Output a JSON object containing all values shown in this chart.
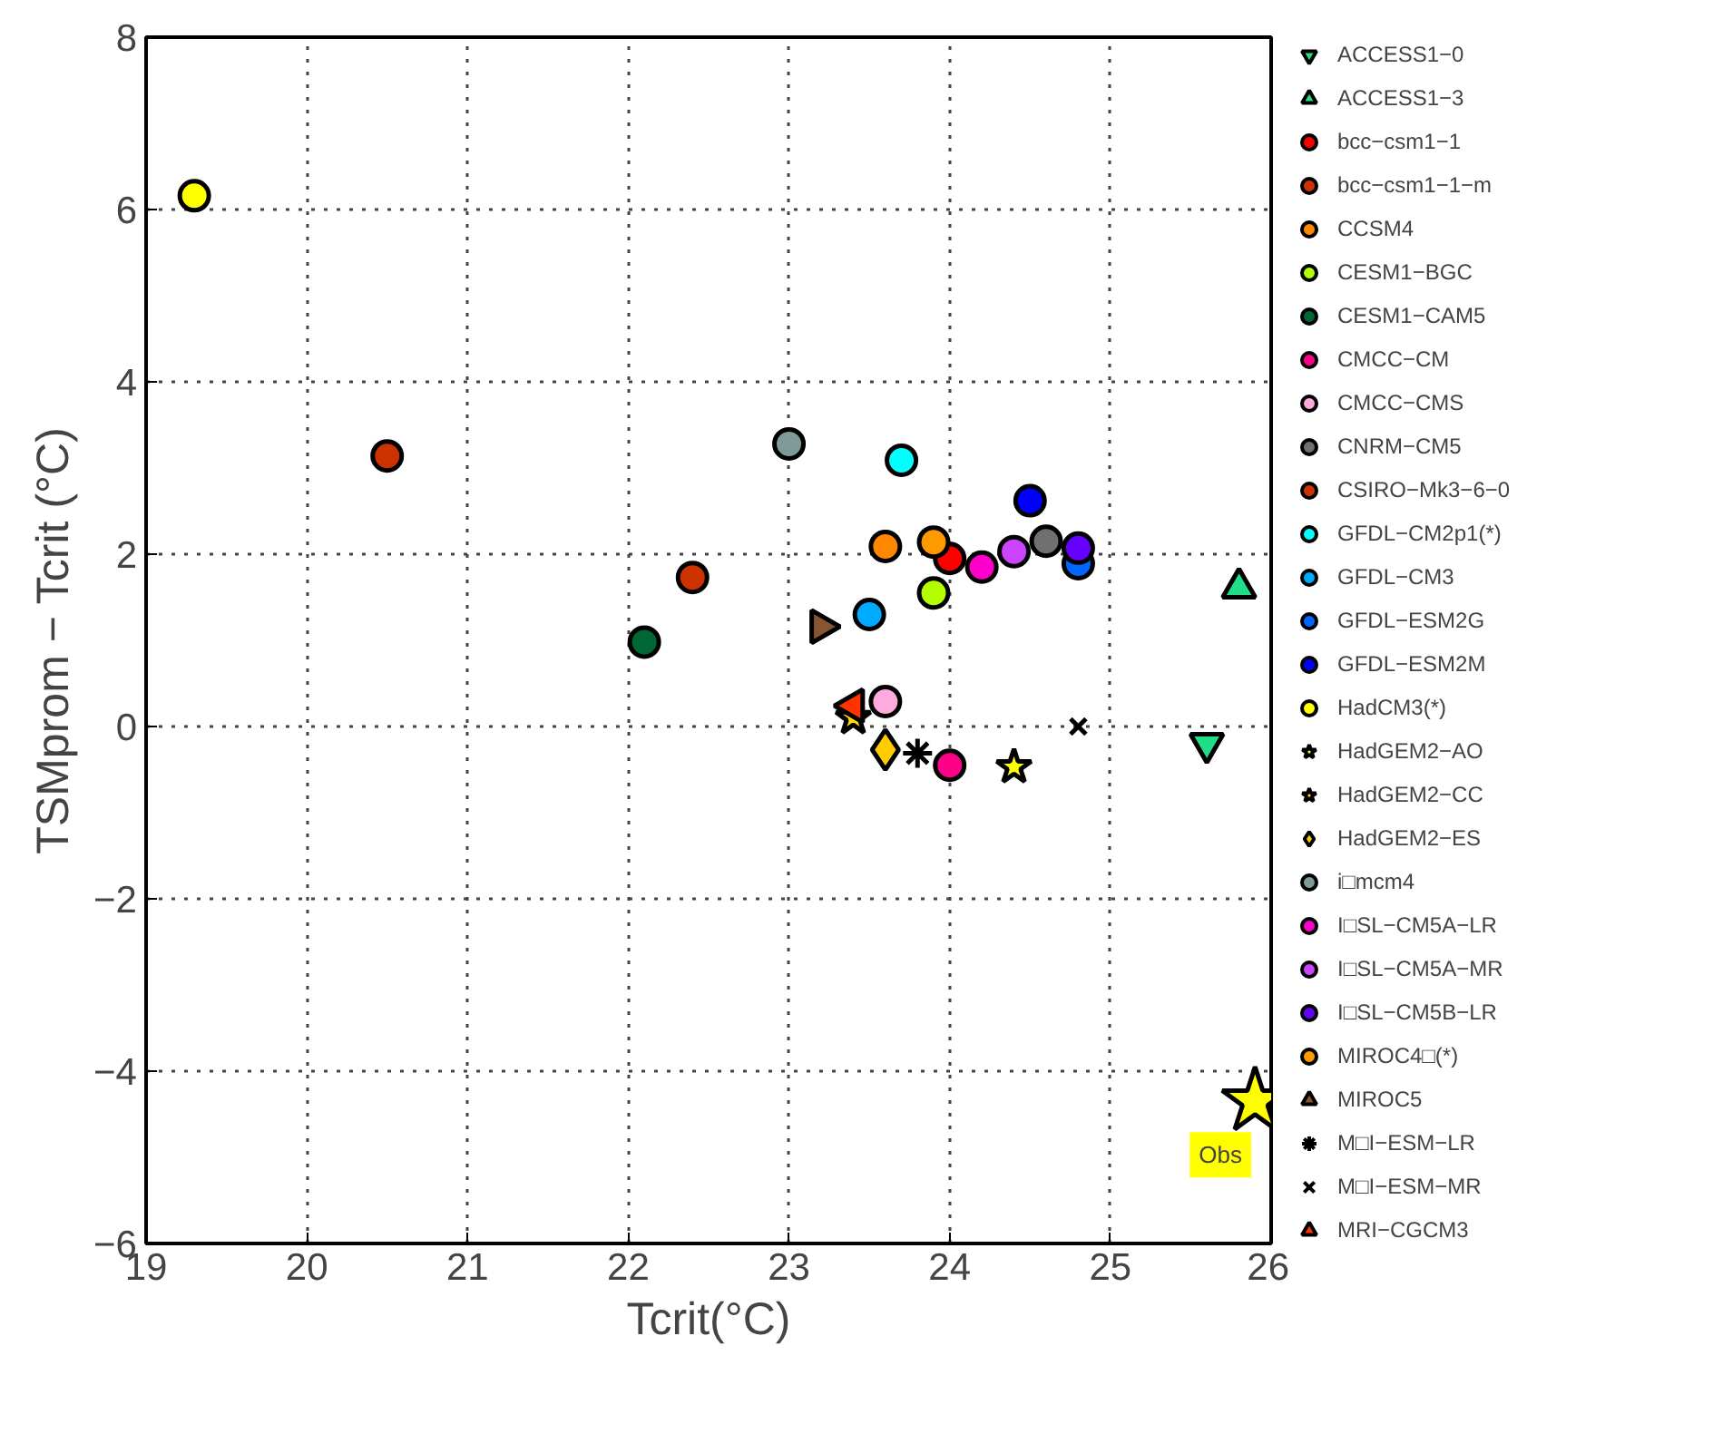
{
  "chart_data": {
    "type": "scatter",
    "xlabel": "Tcrit(°C)",
    "ylabel": "TSMprom − Tcrit (°C)",
    "xlim": [
      19,
      26
    ],
    "xticks": [
      19,
      20,
      21,
      22,
      23,
      24,
      25,
      26
    ],
    "ylim": [
      -6,
      8
    ],
    "yticks": [
      -6,
      -4,
      -2,
      0,
      2,
      4,
      6,
      8
    ],
    "grid": true,
    "legend": "right",
    "annotations": [
      {
        "text": "Obs",
        "x": 25.9,
        "y": -4.35
      }
    ],
    "series": [
      {
        "name": "ACCESS1−0",
        "color": "#22dd88",
        "marker": "triangle_down",
        "x": [
          25.6
        ],
        "values": [
          -0.2
        ]
      },
      {
        "name": "ACCESS1−3",
        "color": "#22dd88",
        "marker": "triangle",
        "x": [
          25.8
        ],
        "values": [
          1.61
        ]
      },
      {
        "name": "bcc−csm1−1",
        "color": "#ff0000",
        "marker": "circle",
        "x": [
          24.0
        ],
        "values": [
          1.95
        ]
      },
      {
        "name": "bcc−csm1−1−m",
        "color": "#cc3300",
        "marker": "circle",
        "x": [
          20.5
        ],
        "values": [
          3.14
        ]
      },
      {
        "name": "CCSM4",
        "color": "#ff8800",
        "marker": "circle",
        "x": [
          23.6
        ],
        "values": [
          2.09
        ]
      },
      {
        "name": "CESM1−BGC",
        "color": "#b3ff00",
        "marker": "circle",
        "x": [
          23.9
        ],
        "values": [
          1.55
        ]
      },
      {
        "name": "CESM1−CAM5",
        "color": "#006633",
        "marker": "circle",
        "x": [
          22.1
        ],
        "values": [
          0.98
        ]
      },
      {
        "name": "CMCC−CM",
        "color": "#ff0088",
        "marker": "circle",
        "x": [
          24.0
        ],
        "values": [
          -0.45
        ]
      },
      {
        "name": "CMCC−CMS",
        "color": "#ffaadd",
        "marker": "circle",
        "x": [
          23.6
        ],
        "values": [
          0.29
        ]
      },
      {
        "name": "CNRM−CM5",
        "color": "#707070",
        "marker": "circle",
        "x": [
          24.6
        ],
        "values": [
          2.15
        ]
      },
      {
        "name": "CSIRO−Mk3−6−0",
        "color": "#cc3300",
        "marker": "circle",
        "x": [
          22.4
        ],
        "values": [
          1.73
        ]
      },
      {
        "name": "GFDL−CM2p1(*)",
        "color": "#00ffff",
        "marker": "circle",
        "x": [
          23.7
        ],
        "values": [
          3.09
        ]
      },
      {
        "name": "GFDL−CM3",
        "color": "#00aaff",
        "marker": "circle",
        "x": [
          23.5
        ],
        "values": [
          1.3
        ]
      },
      {
        "name": "GFDL−ESM2G",
        "color": "#0066ff",
        "marker": "circle",
        "x": [
          24.8
        ],
        "values": [
          1.89
        ]
      },
      {
        "name": "GFDL−ESM2M",
        "color": "#0000ff",
        "marker": "circle",
        "x": [
          24.5
        ],
        "values": [
          2.62
        ]
      },
      {
        "name": "HadCM3(*)",
        "color": "#ffff00",
        "marker": "circle",
        "x": [
          19.3
        ],
        "values": [
          6.16
        ]
      },
      {
        "name": "HadGEM2−AO",
        "color": "#ffff00",
        "marker": "star",
        "x": [
          24.4
        ],
        "values": [
          -0.47
        ]
      },
      {
        "name": "HadGEM2−CC",
        "color": "#ffdd00",
        "marker": "star",
        "x": [
          23.4
        ],
        "values": [
          0.1
        ]
      },
      {
        "name": "HadGEM2−ES",
        "color": "#ffcc00",
        "marker": "diamond",
        "x": [
          23.6
        ],
        "values": [
          -0.27
        ]
      },
      {
        "name": "i□mcm4",
        "color": "#809999",
        "marker": "circle",
        "x": [
          23.0
        ],
        "values": [
          3.28
        ]
      },
      {
        "name": "I□SL−CM5A−LR",
        "color": "#ff00cc",
        "marker": "circle",
        "x": [
          24.2
        ],
        "values": [
          1.85
        ]
      },
      {
        "name": "I□SL−CM5A−MR",
        "color": "#cc44ff",
        "marker": "circle",
        "x": [
          24.4
        ],
        "values": [
          2.03
        ]
      },
      {
        "name": "I□SL−CM5B−LR",
        "color": "#6600ff",
        "marker": "circle",
        "x": [
          24.8
        ],
        "values": [
          2.07
        ]
      },
      {
        "name": "MIROC4□(*)",
        "color": "#ff9900",
        "marker": "circle",
        "x": [
          23.9
        ],
        "values": [
          2.14
        ]
      },
      {
        "name": "MIROC5",
        "color": "#885533",
        "marker": "triangle_right",
        "x": [
          23.2
        ],
        "values": [
          1.16
        ]
      },
      {
        "name": "M□I−ESM−LR",
        "color": "#000000",
        "marker": "cross",
        "x": [
          23.8
        ],
        "values": [
          -0.31
        ]
      },
      {
        "name": "M□I−ESM−MR",
        "color": "#000000",
        "marker": "x",
        "x": [
          24.8
        ],
        "values": [
          0.0
        ]
      },
      {
        "name": "MRI−CGCM3",
        "color": "#ff3300",
        "marker": "triangle_left",
        "x": [
          23.4
        ],
        "values": [
          0.24
        ]
      },
      {
        "color": "#ffff00",
        "marker": "star_big",
        "x": [
          25.9
        ],
        "values": [
          -4.35
        ]
      }
    ]
  }
}
